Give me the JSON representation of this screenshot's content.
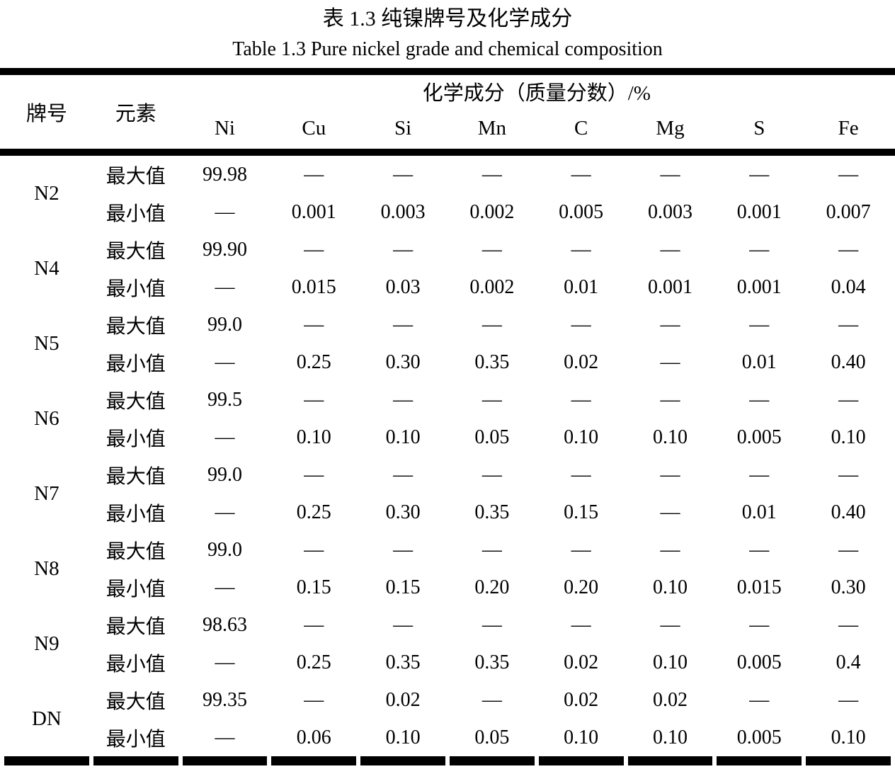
{
  "title_cn": "表 1.3 纯镍牌号及化学成分",
  "title_en": "Table 1.3 Pure nickel grade and chemical composition",
  "colors": {
    "text": "#000000",
    "rule": "#000000",
    "background": "#ffffff"
  },
  "table": {
    "header": {
      "grade": "牌号",
      "element": "元素",
      "composition": "化学成分（质量分数）/%",
      "elements": [
        "Ni",
        "Cu",
        "Si",
        "Mn",
        "C",
        "Mg",
        "S",
        "Fe"
      ]
    },
    "row_labels": {
      "max": "最大值",
      "min": "最小值"
    },
    "grades": [
      {
        "grade": "N2",
        "max": [
          "99.98",
          "—",
          "—",
          "—",
          "—",
          "—",
          "—",
          "—"
        ],
        "min": [
          "—",
          "0.001",
          "0.003",
          "0.002",
          "0.005",
          "0.003",
          "0.001",
          "0.007"
        ]
      },
      {
        "grade": "N4",
        "max": [
          "99.90",
          "—",
          "—",
          "—",
          "—",
          "—",
          "—",
          "—"
        ],
        "min": [
          "—",
          "0.015",
          "0.03",
          "0.002",
          "0.01",
          "0.001",
          "0.001",
          "0.04"
        ]
      },
      {
        "grade": "N5",
        "max": [
          "99.0",
          "—",
          "—",
          "—",
          "—",
          "—",
          "—",
          "—"
        ],
        "min": [
          "—",
          "0.25",
          "0.30",
          "0.35",
          "0.02",
          "—",
          "0.01",
          "0.40"
        ]
      },
      {
        "grade": "N6",
        "max": [
          "99.5",
          "—",
          "—",
          "—",
          "—",
          "—",
          "—",
          "—"
        ],
        "min": [
          "—",
          "0.10",
          "0.10",
          "0.05",
          "0.10",
          "0.10",
          "0.005",
          "0.10"
        ]
      },
      {
        "grade": "N7",
        "max": [
          "99.0",
          "—",
          "—",
          "—",
          "—",
          "—",
          "—",
          "—"
        ],
        "min": [
          "—",
          "0.25",
          "0.30",
          "0.35",
          "0.15",
          "—",
          "0.01",
          "0.40"
        ]
      },
      {
        "grade": "N8",
        "max": [
          "99.0",
          "—",
          "—",
          "—",
          "—",
          "—",
          "—",
          "—"
        ],
        "min": [
          "—",
          "0.15",
          "0.15",
          "0.20",
          "0.20",
          "0.10",
          "0.015",
          "0.30"
        ]
      },
      {
        "grade": "N9",
        "max": [
          "98.63",
          "—",
          "—",
          "—",
          "—",
          "—",
          "—",
          "—"
        ],
        "min": [
          "—",
          "0.25",
          "0.35",
          "0.35",
          "0.02",
          "0.10",
          "0.005",
          "0.4"
        ]
      },
      {
        "grade": "DN",
        "max": [
          "99.35",
          "—",
          "0.02",
          "—",
          "0.02",
          "0.02",
          "—",
          "—"
        ],
        "min": [
          "—",
          "0.06",
          "0.10",
          "0.05",
          "0.10",
          "0.10",
          "0.005",
          "0.10"
        ]
      }
    ]
  }
}
